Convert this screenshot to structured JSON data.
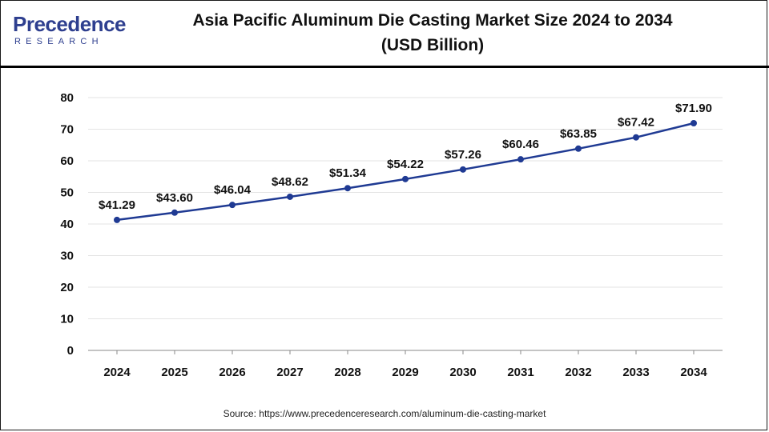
{
  "header": {
    "logo_word": "Precedence",
    "logo_sub": "RESEARCH",
    "title_line1": "Asia Pacific Aluminum Die Casting Market Size 2024 to 2034",
    "title_line2": "(USD Billion)"
  },
  "footer": {
    "source": "Source: https://www.precedenceresearch.com/aluminum-die-casting-market"
  },
  "colors": {
    "line": "#1f3a93",
    "brand": "#2e3f8f"
  },
  "chart_data": {
    "type": "line",
    "title": "Asia Pacific Aluminum Die Casting Market Size 2024 to 2034 (USD Billion)",
    "xlabel": "",
    "ylabel": "",
    "categories": [
      "2024",
      "2025",
      "2026",
      "2027",
      "2028",
      "2029",
      "2030",
      "2031",
      "2032",
      "2033",
      "2034"
    ],
    "values": [
      41.29,
      43.6,
      46.04,
      48.62,
      51.34,
      54.22,
      57.26,
      60.46,
      63.85,
      67.42,
      71.9
    ],
    "labels": [
      "$41.29",
      "$43.60",
      "$46.04",
      "$48.62",
      "$51.34",
      "$54.22",
      "$57.26",
      "$60.46",
      "$63.85",
      "$67.42",
      "$71.90"
    ],
    "ylim": [
      0,
      80
    ],
    "yticks": [
      "0",
      "10",
      "20",
      "30",
      "40",
      "50",
      "60",
      "70",
      "80"
    ],
    "grid": true,
    "legend": "none"
  }
}
